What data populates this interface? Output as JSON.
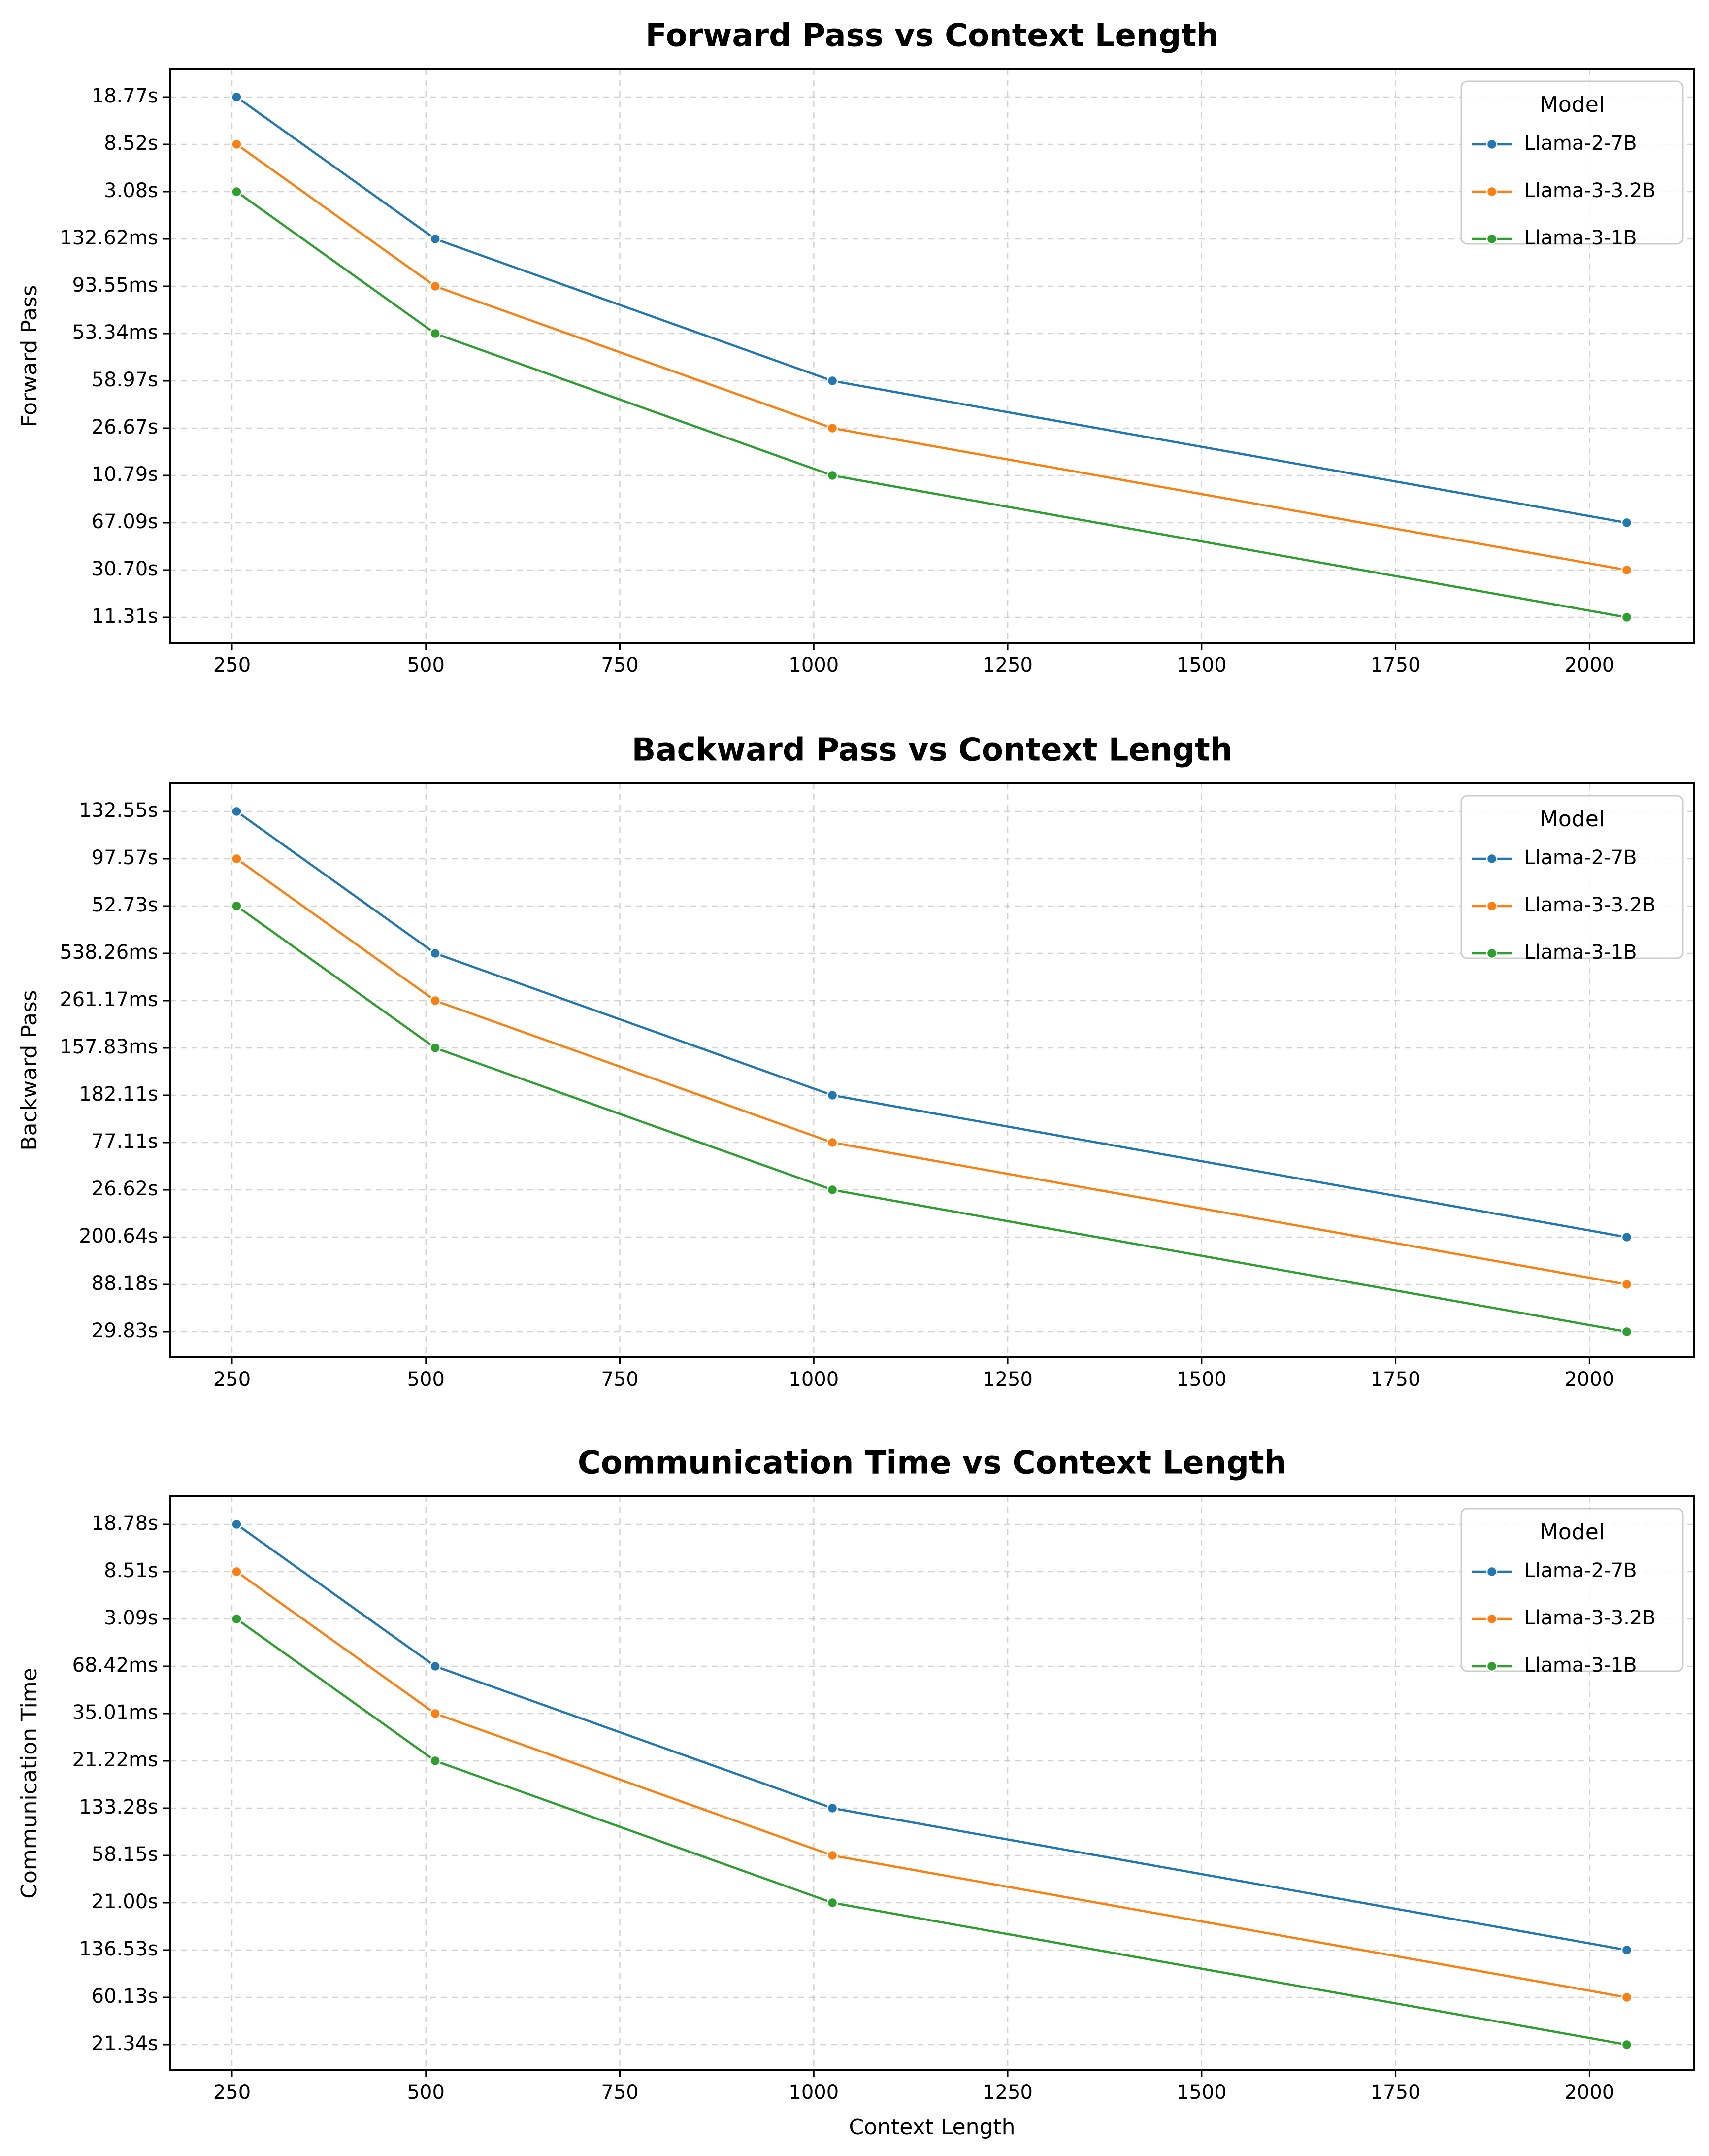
{
  "colors": {
    "Llama-2-7B": "#1f77b4",
    "Llama-3-3.2B": "#ff7f0e",
    "Llama-3-1B": "#2ca02c"
  },
  "chart_data": [
    {
      "type": "line",
      "title": "Forward Pass vs Context Length",
      "xlabel": "",
      "ylabel": "Forward Pass",
      "x": [
        256,
        512,
        1024,
        2048
      ],
      "xlim": [
        170,
        2135
      ],
      "xticks": [
        250,
        500,
        750,
        1000,
        1250,
        1500,
        1750,
        2000
      ],
      "yscale": "categorical (tick labels in plotted order, top to bottom)",
      "yticks": [
        "18.77s",
        "8.52s",
        "3.08s",
        "132.62ms",
        "93.55ms",
        "53.34ms",
        "58.97s",
        "26.67s",
        "10.79s",
        "67.09s",
        "30.70s",
        "11.31s"
      ],
      "grid": true,
      "legend": {
        "title": "Model",
        "position": "top-right"
      },
      "series": [
        {
          "name": "Llama-2-7B",
          "values": [
            "18.77s",
            "132.62ms",
            "58.97s",
            "67.09s"
          ]
        },
        {
          "name": "Llama-3-3.2B",
          "values": [
            "8.52s",
            "93.55ms",
            "26.67s",
            "30.70s"
          ]
        },
        {
          "name": "Llama-3-1B",
          "values": [
            "3.08s",
            "53.34ms",
            "10.79s",
            "11.31s"
          ]
        }
      ]
    },
    {
      "type": "line",
      "title": "Backward Pass vs Context Length",
      "xlabel": "",
      "ylabel": "Backward Pass",
      "x": [
        256,
        512,
        1024,
        2048
      ],
      "xlim": [
        170,
        2135
      ],
      "xticks": [
        250,
        500,
        750,
        1000,
        1250,
        1500,
        1750,
        2000
      ],
      "yscale": "categorical (tick labels in plotted order, top to bottom)",
      "yticks": [
        "132.55s",
        "97.57s",
        "52.73s",
        "538.26ms",
        "261.17ms",
        "157.83ms",
        "182.11s",
        "77.11s",
        "26.62s",
        "200.64s",
        "88.18s",
        "29.83s"
      ],
      "grid": true,
      "legend": {
        "title": "Model",
        "position": "top-right"
      },
      "series": [
        {
          "name": "Llama-2-7B",
          "values": [
            "132.55s",
            "538.26ms",
            "182.11s",
            "200.64s"
          ]
        },
        {
          "name": "Llama-3-3.2B",
          "values": [
            "97.57s",
            "261.17ms",
            "77.11s",
            "88.18s"
          ]
        },
        {
          "name": "Llama-3-1B",
          "values": [
            "52.73s",
            "157.83ms",
            "26.62s",
            "29.83s"
          ]
        }
      ]
    },
    {
      "type": "line",
      "title": "Communication Time vs Context Length",
      "xlabel": "Context Length",
      "ylabel": "Communication Time",
      "x": [
        256,
        512,
        1024,
        2048
      ],
      "xlim": [
        170,
        2135
      ],
      "xticks": [
        250,
        500,
        750,
        1000,
        1250,
        1500,
        1750,
        2000
      ],
      "yscale": "categorical (tick labels in plotted order, top to bottom)",
      "yticks": [
        "18.78s",
        "8.51s",
        "3.09s",
        "68.42ms",
        "35.01ms",
        "21.22ms",
        "133.28s",
        "58.15s",
        "21.00s",
        "136.53s",
        "60.13s",
        "21.34s"
      ],
      "grid": true,
      "legend": {
        "title": "Model",
        "position": "top-right"
      },
      "series": [
        {
          "name": "Llama-2-7B",
          "values": [
            "18.78s",
            "68.42ms",
            "133.28s",
            "136.53s"
          ]
        },
        {
          "name": "Llama-3-3.2B",
          "values": [
            "8.51s",
            "35.01ms",
            "58.15s",
            "60.13s"
          ]
        },
        {
          "name": "Llama-3-1B",
          "values": [
            "3.09s",
            "21.22ms",
            "21.00s",
            "21.34s"
          ]
        }
      ]
    }
  ]
}
